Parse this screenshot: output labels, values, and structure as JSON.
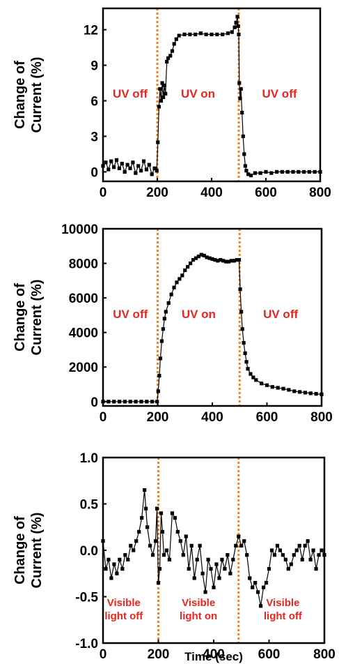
{
  "chart_data": [
    {
      "type": "scatter",
      "title": "",
      "xlabel": "",
      "ylabel_lines": [
        "Change of",
        "Current (%)"
      ],
      "xlim": [
        0,
        800
      ],
      "ylim": [
        -0.8,
        13.8
      ],
      "x_ticks": [
        0,
        200,
        400,
        600,
        800
      ],
      "x_tick_labels": [
        "0",
        "200",
        "400",
        "600",
        "800"
      ],
      "y_ticks": [
        0,
        3,
        6,
        9,
        12
      ],
      "y_tick_labels": [
        "0",
        "3",
        "6",
        "9",
        "12"
      ],
      "marker_color": "#000000",
      "marker_style": "square",
      "vlines": [
        200,
        500
      ],
      "vline_color": "#f0821e",
      "annotations": [
        {
          "lines": [
            "UV off"
          ],
          "x": 100,
          "y": 6.1,
          "color": "#e8251f"
        },
        {
          "lines": [
            "UV on"
          ],
          "x": 350,
          "y": 6.1,
          "color": "#e8251f"
        },
        {
          "lines": [
            "UV off"
          ],
          "x": 650,
          "y": 6.1,
          "color": "#e8251f"
        }
      ],
      "series": [
        {
          "points": [
            [
              0,
              0.5
            ],
            [
              10,
              0.8
            ],
            [
              20,
              0.2
            ],
            [
              30,
              0.9
            ],
            [
              40,
              0.4
            ],
            [
              50,
              1.0
            ],
            [
              60,
              0.3
            ],
            [
              70,
              0.7
            ],
            [
              80,
              0.0
            ],
            [
              90,
              0.6
            ],
            [
              100,
              0.3
            ],
            [
              110,
              0.8
            ],
            [
              120,
              -0.1
            ],
            [
              130,
              0.5
            ],
            [
              140,
              0.1
            ],
            [
              150,
              0.9
            ],
            [
              160,
              0.2
            ],
            [
              170,
              0.6
            ],
            [
              180,
              -0.2
            ],
            [
              190,
              0.3
            ],
            [
              198,
              0.1
            ],
            [
              202,
              2.5
            ],
            [
              206,
              5.5
            ],
            [
              210,
              7.0
            ],
            [
              214,
              6.0
            ],
            [
              218,
              7.5
            ],
            [
              222,
              6.3
            ],
            [
              226,
              7.3
            ],
            [
              230,
              6.6
            ],
            [
              235,
              9.3
            ],
            [
              240,
              9.6
            ],
            [
              248,
              9.8
            ],
            [
              255,
              10.2
            ],
            [
              262,
              10.8
            ],
            [
              270,
              11.2
            ],
            [
              280,
              11.5
            ],
            [
              300,
              11.6
            ],
            [
              320,
              11.6
            ],
            [
              340,
              11.6
            ],
            [
              360,
              11.7
            ],
            [
              380,
              11.6
            ],
            [
              400,
              11.6
            ],
            [
              420,
              11.6
            ],
            [
              440,
              11.6
            ],
            [
              460,
              11.7
            ],
            [
              475,
              11.8
            ],
            [
              485,
              12.2
            ],
            [
              490,
              12.6
            ],
            [
              495,
              13.1
            ],
            [
              498,
              12.3
            ],
            [
              500,
              11.6
            ],
            [
              502,
              7.5
            ],
            [
              505,
              6.2
            ],
            [
              508,
              7.0
            ],
            [
              512,
              5.0
            ],
            [
              516,
              3.0
            ],
            [
              520,
              1.5
            ],
            [
              524,
              0.5
            ],
            [
              528,
              0.1
            ],
            [
              535,
              -0.2
            ],
            [
              545,
              -0.3
            ],
            [
              560,
              -0.1
            ],
            [
              580,
              -0.1
            ],
            [
              600,
              0.0
            ],
            [
              620,
              -0.1
            ],
            [
              640,
              0.0
            ],
            [
              660,
              0.0
            ],
            [
              680,
              0.0
            ],
            [
              700,
              0.0
            ],
            [
              720,
              0.0
            ],
            [
              740,
              0.0
            ],
            [
              760,
              0.0
            ],
            [
              780,
              0.0
            ],
            [
              800,
              0.0
            ]
          ]
        }
      ]
    },
    {
      "type": "scatter",
      "title": "",
      "xlabel": "",
      "ylabel_lines": [
        "Change of",
        "Current (%)"
      ],
      "xlim": [
        0,
        800
      ],
      "ylim": [
        -250,
        10000
      ],
      "x_ticks": [
        0,
        200,
        400,
        600,
        800
      ],
      "x_tick_labels": [
        "0",
        "200",
        "400",
        "600",
        "800"
      ],
      "y_ticks": [
        0,
        2000,
        4000,
        6000,
        8000,
        10000
      ],
      "y_tick_labels": [
        "0",
        "2000",
        "4000",
        "6000",
        "8000",
        "10000"
      ],
      "marker_color": "#000000",
      "marker_style": "square",
      "vlines": [
        200,
        500
      ],
      "vline_color": "#f0821e",
      "annotations": [
        {
          "lines": [
            "UV off"
          ],
          "x": 100,
          "y": 5900,
          "color": "#e8251f"
        },
        {
          "lines": [
            "UV on"
          ],
          "x": 350,
          "y": 5900,
          "color": "#e8251f"
        },
        {
          "lines": [
            "UV off"
          ],
          "x": 650,
          "y": 5900,
          "color": "#e8251f"
        }
      ],
      "series": [
        {
          "points": [
            [
              0,
              0
            ],
            [
              20,
              0
            ],
            [
              40,
              0
            ],
            [
              60,
              0
            ],
            [
              80,
              0
            ],
            [
              100,
              0
            ],
            [
              120,
              0
            ],
            [
              140,
              0
            ],
            [
              160,
              0
            ],
            [
              180,
              0
            ],
            [
              198,
              0
            ],
            [
              202,
              600
            ],
            [
              206,
              1500
            ],
            [
              210,
              2500
            ],
            [
              215,
              3500
            ],
            [
              220,
              4200
            ],
            [
              225,
              4800
            ],
            [
              230,
              5200
            ],
            [
              240,
              5700
            ],
            [
              250,
              6200
            ],
            [
              260,
              6600
            ],
            [
              270,
              6900
            ],
            [
              280,
              7100
            ],
            [
              290,
              7300
            ],
            [
              300,
              7600
            ],
            [
              310,
              7800
            ],
            [
              320,
              8000
            ],
            [
              330,
              8200
            ],
            [
              340,
              8300
            ],
            [
              350,
              8400
            ],
            [
              360,
              8500
            ],
            [
              370,
              8450
            ],
            [
              380,
              8350
            ],
            [
              390,
              8300
            ],
            [
              400,
              8250
            ],
            [
              410,
              8200
            ],
            [
              420,
              8150
            ],
            [
              430,
              8200
            ],
            [
              440,
              8150
            ],
            [
              450,
              8100
            ],
            [
              460,
              8100
            ],
            [
              470,
              8150
            ],
            [
              480,
              8150
            ],
            [
              490,
              8200
            ],
            [
              498,
              8200
            ],
            [
              502,
              6500
            ],
            [
              506,
              5200
            ],
            [
              510,
              4200
            ],
            [
              515,
              3400
            ],
            [
              520,
              2800
            ],
            [
              525,
              2300
            ],
            [
              530,
              1900
            ],
            [
              540,
              1600
            ],
            [
              550,
              1400
            ],
            [
              560,
              1250
            ],
            [
              580,
              1050
            ],
            [
              600,
              950
            ],
            [
              620,
              850
            ],
            [
              640,
              800
            ],
            [
              660,
              750
            ],
            [
              680,
              680
            ],
            [
              700,
              600
            ],
            [
              720,
              560
            ],
            [
              740,
              520
            ],
            [
              760,
              480
            ],
            [
              780,
              450
            ],
            [
              800,
              420
            ]
          ]
        }
      ]
    },
    {
      "type": "scatter",
      "title": "",
      "xlabel": "Time (sec)",
      "ylabel_lines": [
        "Change of",
        "Current (%)"
      ],
      "xlim": [
        0,
        800
      ],
      "ylim": [
        -1.0,
        1.0
      ],
      "x_ticks": [
        0,
        200,
        400,
        600,
        800
      ],
      "x_tick_labels": [
        "0",
        "200",
        "400",
        "600",
        "800"
      ],
      "y_ticks": [
        -1.0,
        -0.5,
        0.0,
        0.5,
        1.0
      ],
      "y_tick_labels": [
        "-1.0",
        "-0.5",
        "0.0",
        "0.5",
        "1.0"
      ],
      "marker_color": "#000000",
      "marker_style": "square",
      "vlines": [
        200,
        490
      ],
      "vline_color": "#f0821e",
      "annotations": [
        {
          "lines": [
            "Visible",
            "light off"
          ],
          "x": 75,
          "y": -0.72,
          "color": "#e8251f"
        },
        {
          "lines": [
            "Visible",
            "light on"
          ],
          "x": 345,
          "y": -0.72,
          "color": "#e8251f"
        },
        {
          "lines": [
            "Visible",
            "light off"
          ],
          "x": 650,
          "y": -0.72,
          "color": "#e8251f"
        }
      ],
      "series": [
        {
          "points": [
            [
              0,
              0.1
            ],
            [
              10,
              -0.2
            ],
            [
              20,
              -0.1
            ],
            [
              30,
              -0.3
            ],
            [
              40,
              -0.15
            ],
            [
              50,
              -0.25
            ],
            [
              60,
              -0.1
            ],
            [
              70,
              -0.2
            ],
            [
              80,
              -0.05
            ],
            [
              90,
              -0.1
            ],
            [
              100,
              0.05
            ],
            [
              110,
              0.0
            ],
            [
              120,
              0.1
            ],
            [
              130,
              0.2
            ],
            [
              140,
              0.35
            ],
            [
              150,
              0.65
            ],
            [
              155,
              0.45
            ],
            [
              160,
              0.25
            ],
            [
              170,
              0.05
            ],
            [
              180,
              -0.05
            ],
            [
              190,
              0.1
            ],
            [
              195,
              0.45
            ],
            [
              200,
              -0.35
            ],
            [
              205,
              -0.2
            ],
            [
              210,
              0.4
            ],
            [
              215,
              0.2
            ],
            [
              220,
              -0.05
            ],
            [
              230,
              0.0
            ],
            [
              240,
              -0.1
            ],
            [
              250,
              0.4
            ],
            [
              260,
              0.35
            ],
            [
              270,
              0.2
            ],
            [
              280,
              0.1
            ],
            [
              290,
              -0.05
            ],
            [
              300,
              0.15
            ],
            [
              310,
              -0.2
            ],
            [
              320,
              0.05
            ],
            [
              330,
              -0.3
            ],
            [
              340,
              -0.1
            ],
            [
              350,
              0.05
            ],
            [
              360,
              -0.25
            ],
            [
              370,
              -0.45
            ],
            [
              380,
              -0.1
            ],
            [
              390,
              -0.2
            ],
            [
              400,
              -0.4
            ],
            [
              410,
              -0.15
            ],
            [
              420,
              -0.3
            ],
            [
              430,
              -0.1
            ],
            [
              440,
              -0.2
            ],
            [
              450,
              -0.05
            ],
            [
              460,
              -0.25
            ],
            [
              470,
              -0.1
            ],
            [
              480,
              0.05
            ],
            [
              490,
              0.15
            ],
            [
              500,
              0.05
            ],
            [
              510,
              0.1
            ],
            [
              520,
              -0.05
            ],
            [
              530,
              -0.3
            ],
            [
              540,
              -0.4
            ],
            [
              550,
              -0.35
            ],
            [
              560,
              -0.45
            ],
            [
              570,
              -0.6
            ],
            [
              580,
              -0.4
            ],
            [
              590,
              -0.35
            ],
            [
              600,
              -0.2
            ],
            [
              610,
              0.0
            ],
            [
              620,
              -0.05
            ],
            [
              630,
              0.05
            ],
            [
              640,
              0.0
            ],
            [
              650,
              -0.05
            ],
            [
              660,
              -0.1
            ],
            [
              670,
              -0.2
            ],
            [
              680,
              -0.15
            ],
            [
              690,
              -0.05
            ],
            [
              700,
              0.0
            ],
            [
              710,
              0.05
            ],
            [
              720,
              -0.1
            ],
            [
              730,
              0.05
            ],
            [
              740,
              0.1
            ],
            [
              750,
              -0.1
            ],
            [
              760,
              0.0
            ],
            [
              770,
              -0.2
            ],
            [
              780,
              -0.05
            ],
            [
              790,
              0.0
            ],
            [
              800,
              -0.05
            ]
          ]
        }
      ]
    }
  ]
}
